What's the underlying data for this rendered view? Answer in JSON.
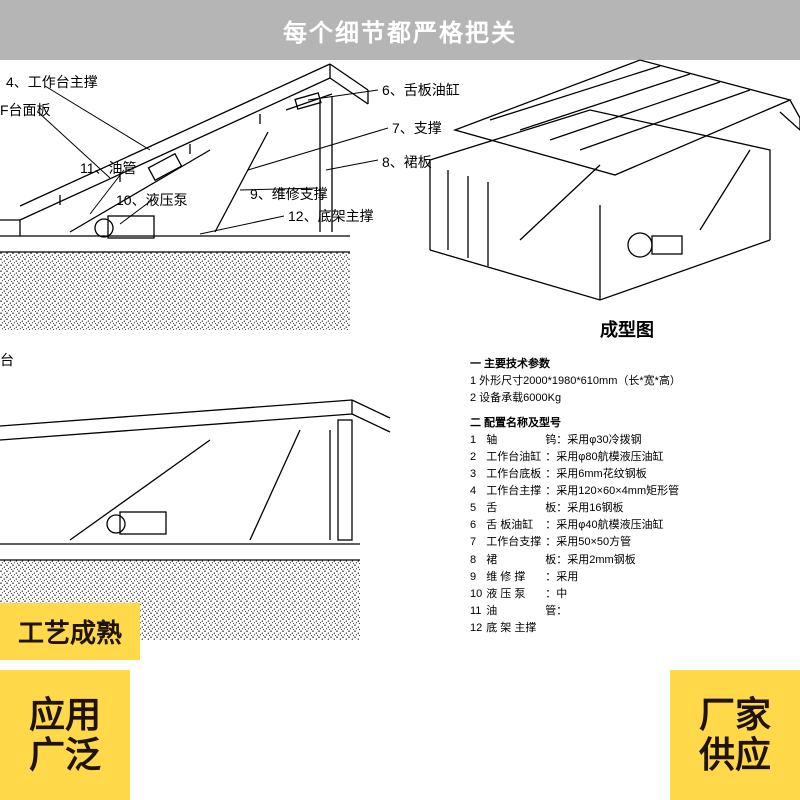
{
  "banner": {
    "text": "每个细节都严格把关"
  },
  "badges": {
    "bottom_left_line1": "应用",
    "bottom_left_line2": "广泛",
    "middle_tag": "工艺成熟",
    "bottom_right_line1": "厂家",
    "bottom_right_line2": "供应"
  },
  "labels": {
    "c4": "4、工作台主撑",
    "c5_partial": "F台面板",
    "c6": "6、舌板油缸",
    "c7": "7、支撑",
    "c8": "8、裙板",
    "c9": "9、维修支撑",
    "c10": "10、液压泵",
    "c11": "11、油管",
    "c12": "12、底架主撑",
    "left_partial": "台",
    "iso_title": "成型图"
  },
  "specs": {
    "sec1_title": "一 主要技术参数",
    "sec1_r1": "1 外形尺寸2000*1980*610mm（长*宽*高）",
    "sec1_r2": "2 设备承载6000Kg",
    "sec2_title": "二 配置名称及型号",
    "rows": [
      [
        "1",
        "轴",
        "钨：采用φ30冷拨钢"
      ],
      [
        "2",
        "工作台油缸",
        "：采用φ80航模液压油缸"
      ],
      [
        "3",
        "工作台底板",
        "：采用6mm花纹钢板"
      ],
      [
        "4",
        "工作台主撑",
        "：采用120×60×4mm矩形管"
      ],
      [
        "5",
        "舌",
        "板：采用16钢板"
      ],
      [
        "6",
        "舌 板油缸",
        "：采用φ40航模液压油缸"
      ],
      [
        "7",
        "工作台支撑",
        "：采用50×50方管"
      ],
      [
        "8",
        "裙",
        "板：采用2mm钢板"
      ],
      [
        "9",
        "维 修 撑",
        "：采用"
      ],
      [
        "10",
        "液 压 泵",
        "：中"
      ],
      [
        "11",
        "油",
        "管："
      ],
      [
        "12",
        "底 架 主撑",
        ""
      ]
    ]
  },
  "style": {
    "stroke": "#000000",
    "stroke_w": 1.3,
    "speck_fill": "#000000",
    "bg": "#ffffff",
    "banner_bg": "rgba(120,120,120,0.55)",
    "badge_bg": "#ffd94a",
    "badge_fg": "#1f1206",
    "label_fontsize": 14,
    "spec_fontsize": 11,
    "title_fontsize": 18
  },
  "geometry": {
    "note": "Schematic dock-leveler diagrams: two cropped sectional views on left (with labeled callouts 4-12) and one isometric '成型图' view top-right; concrete pit shown as speckled texture band; positions approximate to source screenshot."
  }
}
